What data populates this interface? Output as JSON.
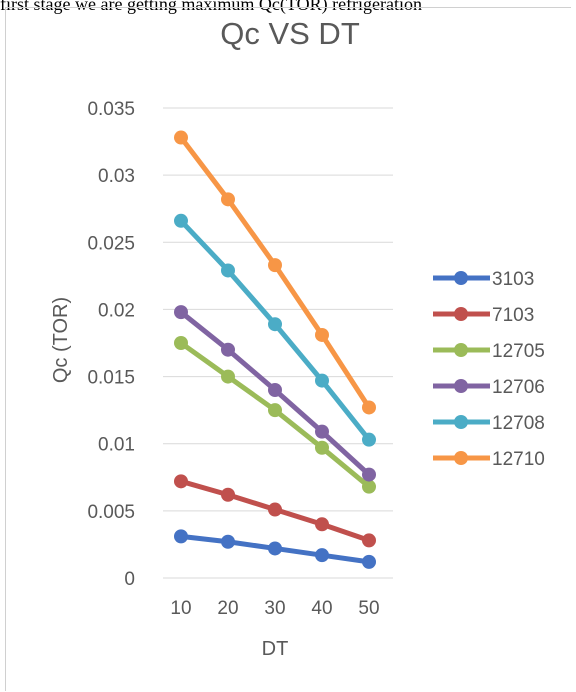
{
  "page": {
    "caption_text": "first stage we are getting maximum Qc(TOR) refrigeration"
  },
  "chart_data": {
    "type": "line",
    "title": "Qc VS DT",
    "xlabel": "DT",
    "ylabel": "Qc (TOR)",
    "x": [
      10,
      20,
      30,
      40,
      50
    ],
    "x_tick_labels": [
      "10",
      "20",
      "30",
      "40",
      "50"
    ],
    "ylim": [
      0,
      0.035
    ],
    "y_ticks": [
      0,
      0.005,
      0.01,
      0.015,
      0.02,
      0.025,
      0.03,
      0.035
    ],
    "y_tick_labels": [
      "0",
      "0.005",
      "0.01",
      "0.015",
      "0.02",
      "0.025",
      "0.03",
      "0.035"
    ],
    "grid": "horizontal",
    "legend_position": "right",
    "series": [
      {
        "name": "3103",
        "color": "#4472C4",
        "values": [
          0.0031,
          0.0027,
          0.0022,
          0.0017,
          0.0012
        ]
      },
      {
        "name": "7103",
        "color": "#C0504D",
        "values": [
          0.0072,
          0.0062,
          0.0051,
          0.004,
          0.0028
        ]
      },
      {
        "name": "12705",
        "color": "#9BBB59",
        "values": [
          0.0175,
          0.015,
          0.0125,
          0.0097,
          0.0068
        ]
      },
      {
        "name": "12706",
        "color": "#8064A2",
        "values": [
          0.0198,
          0.017,
          0.014,
          0.0109,
          0.0077
        ]
      },
      {
        "name": "12708",
        "color": "#4BACC6",
        "values": [
          0.0266,
          0.0229,
          0.0189,
          0.0147,
          0.0103
        ]
      },
      {
        "name": "12710",
        "color": "#F79646",
        "values": [
          0.0328,
          0.0282,
          0.0233,
          0.0181,
          0.0127
        ]
      }
    ]
  }
}
